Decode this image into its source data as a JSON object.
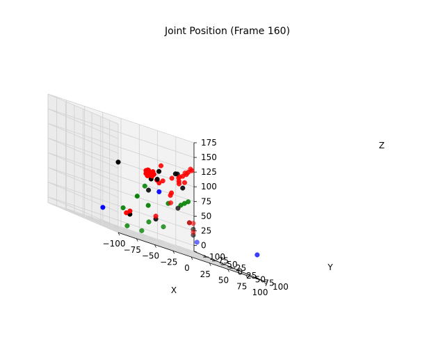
{
  "chart_data": {
    "type": "scatter",
    "projection": "3d",
    "title": "Joint Position (Frame 160)",
    "xlabel": "X",
    "ylabel": "Y",
    "zlabel": "Z",
    "xlim": [
      -100,
      100
    ],
    "ylim": [
      -100,
      100
    ],
    "zlim": [
      -10,
      175
    ],
    "xticks": [
      -100,
      -75,
      -50,
      -25,
      0,
      25,
      50,
      75,
      100
    ],
    "xtick_labels": [
      "−100",
      "−75",
      "−50",
      "−25",
      "0",
      "25",
      "50",
      "75",
      "100"
    ],
    "yticks": [
      -100,
      -75,
      -50,
      -25,
      0,
      25,
      50,
      75,
      100
    ],
    "ytick_labels": [
      "−100",
      "−75",
      "−50",
      "−25",
      "0",
      "25",
      "50",
      "75",
      "100"
    ],
    "zticks": [
      0,
      25,
      50,
      75,
      100,
      125,
      150,
      175
    ],
    "ztick_labels": [
      "0",
      "25",
      "50",
      "75",
      "100",
      "125",
      "150",
      "175"
    ],
    "grid": true,
    "colors": {
      "black": "#000000",
      "red": "#ff0000",
      "green": "#008000",
      "blue": "#0000ff"
    },
    "series": [
      {
        "color": "black",
        "points": [
          [
            -100,
            100,
            110
          ],
          [
            -55,
            100,
            100
          ],
          [
            -20,
            45,
            100
          ],
          [
            -25,
            60,
            115
          ],
          [
            0,
            55,
            120
          ],
          [
            10,
            40,
            120
          ],
          [
            10,
            55,
            100
          ],
          [
            -20,
            20,
            75
          ],
          [
            30,
            0,
            60
          ],
          [
            60,
            -30,
            40
          ],
          [
            75,
            -50,
            20
          ],
          [
            75,
            -50,
            30
          ],
          [
            -60,
            50,
            25
          ],
          [
            -10,
            20,
            30
          ]
        ]
      },
      {
        "color": "red",
        "points": [
          [
            -50,
            75,
            110
          ],
          [
            -50,
            75,
            105
          ],
          [
            -48,
            75,
            102
          ],
          [
            -46,
            73,
            108
          ],
          [
            -47,
            74,
            112
          ],
          [
            -45,
            72,
            112
          ],
          [
            -44,
            74,
            104
          ],
          [
            -42,
            76,
            107
          ],
          [
            -40,
            74,
            112
          ],
          [
            -40,
            72,
            104
          ],
          [
            -38,
            73,
            108
          ],
          [
            -35,
            75,
            100
          ],
          [
            -15,
            45,
            125
          ],
          [
            0,
            65,
            110
          ],
          [
            2,
            60,
            115
          ],
          [
            5,
            55,
            105
          ],
          [
            10,
            55,
            120
          ],
          [
            15,
            60,
            130
          ],
          [
            15,
            55,
            125
          ],
          [
            20,
            60,
            135
          ],
          [
            15,
            50,
            110
          ],
          [
            0,
            45,
            110
          ],
          [
            -10,
            40,
            100
          ],
          [
            -20,
            50,
            95
          ],
          [
            30,
            20,
            125
          ],
          [
            35,
            25,
            135
          ],
          [
            25,
            15,
            115
          ],
          [
            -3,
            50,
            85
          ],
          [
            -2,
            45,
            80
          ],
          [
            20,
            0,
            65
          ],
          [
            60,
            -30,
            40
          ],
          [
            75,
            -50,
            40
          ],
          [
            75,
            -50,
            25
          ],
          [
            -55,
            40,
            30
          ],
          [
            -60,
            40,
            25
          ],
          [
            -10,
            20,
            35
          ]
        ]
      },
      {
        "color": "green",
        "points": [
          [
            -25,
            20,
            80
          ],
          [
            -50,
            50,
            60
          ],
          [
            -30,
            40,
            50
          ],
          [
            -5,
            45,
            65
          ],
          [
            5,
            60,
            70
          ],
          [
            10,
            60,
            75
          ],
          [
            15,
            60,
            80
          ],
          [
            -50,
            10,
            30
          ],
          [
            -10,
            0,
            20
          ],
          [
            10,
            0,
            20
          ],
          [
            -30,
            -20,
            0
          ],
          [
            -10,
            -20,
            0
          ]
        ]
      },
      {
        "color": "blue",
        "points": [
          [
            -85,
            25,
            20
          ],
          [
            -20,
            50,
            80
          ],
          [
            80,
            -50,
            10
          ],
          [
            100,
            80,
            30
          ]
        ]
      }
    ]
  }
}
